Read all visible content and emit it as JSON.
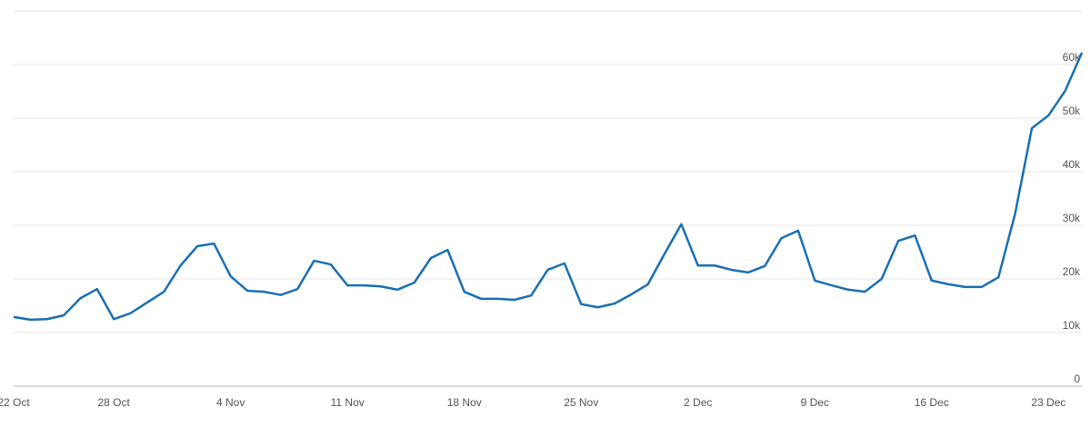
{
  "chart_data": {
    "type": "line",
    "categories": [
      "22 Oct",
      null,
      null,
      null,
      null,
      null,
      "28 Oct",
      null,
      null,
      null,
      null,
      null,
      null,
      "4 Nov",
      null,
      null,
      null,
      null,
      null,
      null,
      "11 Nov",
      null,
      null,
      null,
      null,
      null,
      null,
      "18 Nov",
      null,
      null,
      null,
      null,
      null,
      null,
      "25 Nov",
      null,
      null,
      null,
      null,
      null,
      null,
      "2 Dec",
      null,
      null,
      null,
      null,
      null,
      null,
      "9 Dec",
      null,
      null,
      null,
      null,
      null,
      null,
      "16 Dec",
      null,
      null,
      null,
      null,
      null,
      null,
      "23 Dec",
      null,
      null
    ],
    "series": [
      {
        "color": "#1a70b5",
        "values": [
          12900,
          12400,
          12500,
          13200,
          16400,
          18100,
          12500,
          13600,
          15600,
          17600,
          22500,
          26100,
          26600,
          20500,
          17800,
          17600,
          17000,
          18100,
          23400,
          22700,
          18800,
          18800,
          18600,
          18000,
          19300,
          23900,
          25400,
          17600,
          16300,
          16300,
          16100,
          16900,
          21700,
          22900,
          15300,
          14700,
          15400,
          17100,
          19000,
          24700,
          30200,
          22500,
          22500,
          21700,
          21200,
          22400,
          27600,
          29000,
          19700,
          18800,
          18000,
          17600,
          20000,
          27100,
          28100,
          19700,
          19000,
          18500,
          18500,
          20300,
          32200,
          48100,
          50500,
          55100,
          62200
        ]
      }
    ],
    "ylim": [
      0,
      70000
    ],
    "yticks": [
      0,
      {
        "value": 10000,
        "label": "10k"
      },
      {
        "value": 20000,
        "label": "20k"
      },
      {
        "value": 30000,
        "label": "30k"
      },
      {
        "value": 40000,
        "label": "40k"
      },
      {
        "value": 50000,
        "label": "50k"
      },
      {
        "value": 60000,
        "label": "60k"
      }
    ],
    "grid": true
  }
}
